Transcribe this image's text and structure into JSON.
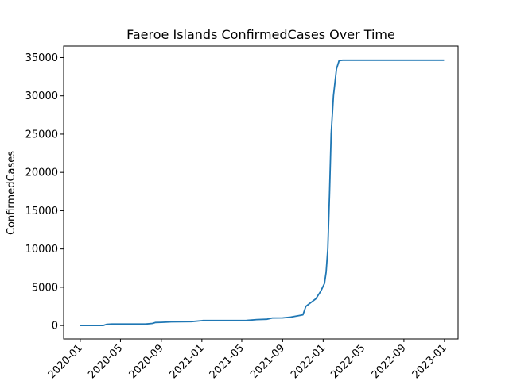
{
  "chart_data": {
    "type": "line",
    "title": "Faeroe Islands  ConfirmedCases Over Time",
    "xlabel": "",
    "ylabel": "ConfirmedCases",
    "x_ticks": [
      "2020-01",
      "2020-05",
      "2020-09",
      "2021-01",
      "2021-05",
      "2021-09",
      "2022-01",
      "2022-05",
      "2022-09",
      "2023-01"
    ],
    "y_ticks": [
      0,
      5000,
      10000,
      15000,
      20000,
      25000,
      30000,
      35000
    ],
    "y_tick_labels": [
      "0",
      "5000",
      "10000",
      "15000",
      "20000",
      "25000",
      "30000",
      "35000"
    ],
    "xlim": [
      "2019-11-12",
      "2023-02-11"
    ],
    "ylim": [
      -1750,
      36500
    ],
    "grid": false,
    "legend": false,
    "series": [
      {
        "color": "#1f77b4",
        "points": [
          [
            "2020-01-01",
            0
          ],
          [
            "2020-03-10",
            0
          ],
          [
            "2020-03-20",
            150
          ],
          [
            "2020-04-05",
            185
          ],
          [
            "2020-07-15",
            190
          ],
          [
            "2020-08-05",
            270
          ],
          [
            "2020-08-15",
            400
          ],
          [
            "2020-09-01",
            420
          ],
          [
            "2020-10-01",
            480
          ],
          [
            "2020-12-01",
            510
          ],
          [
            "2021-01-05",
            650
          ],
          [
            "2021-03-01",
            660
          ],
          [
            "2021-05-15",
            670
          ],
          [
            "2021-06-15",
            780
          ],
          [
            "2021-07-15",
            820
          ],
          [
            "2021-08-01",
            990
          ],
          [
            "2021-09-01",
            1000
          ],
          [
            "2021-09-25",
            1100
          ],
          [
            "2021-10-20",
            1300
          ],
          [
            "2021-11-01",
            1400
          ],
          [
            "2021-11-10",
            2500
          ],
          [
            "2021-11-25",
            3000
          ],
          [
            "2021-12-10",
            3500
          ],
          [
            "2021-12-25",
            4500
          ],
          [
            "2022-01-05",
            5500
          ],
          [
            "2022-01-10",
            7000
          ],
          [
            "2022-01-15",
            10000
          ],
          [
            "2022-01-20",
            17000
          ],
          [
            "2022-01-25",
            25000
          ],
          [
            "2022-02-01",
            30000
          ],
          [
            "2022-02-10",
            33500
          ],
          [
            "2022-02-18",
            34600
          ],
          [
            "2022-03-01",
            34650
          ],
          [
            "2022-12-31",
            34650
          ]
        ]
      }
    ]
  }
}
